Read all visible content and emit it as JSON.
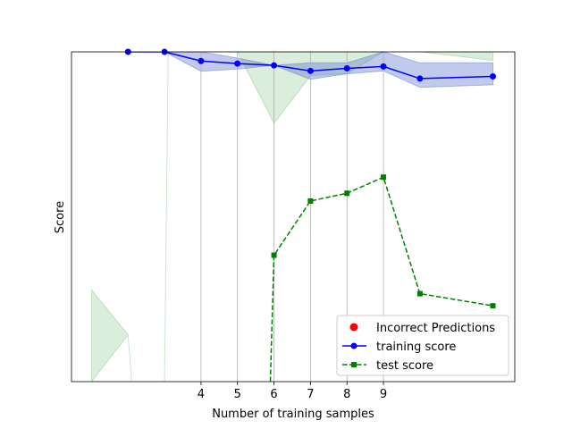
{
  "chart_data": {
    "type": "line",
    "title": "",
    "xlabel": "Number of training samples",
    "ylabel": "Score",
    "xlim": [
      0.45,
      12.6
    ],
    "ylim": [
      0.0,
      0.9
    ],
    "xticks": [
      4,
      5,
      6,
      7,
      8,
      9
    ],
    "yticks": [],
    "grid": "vertical",
    "legend": "lower-right",
    "colors": {
      "training": "#0000ff",
      "test": "#008000",
      "training_band": "#4d68c8",
      "test_band": "#5aab5a",
      "incorrect": "#ff0000"
    },
    "legend_entries": [
      {
        "label": "Incorrect Predictions",
        "marker": "circle",
        "color": "#ff0000"
      },
      {
        "label": "training score",
        "marker": "circle-line",
        "color": "#0000ff"
      },
      {
        "label": "test score",
        "marker": "square-dashed",
        "color": "#008000"
      }
    ],
    "series": [
      {
        "name": "training score",
        "x": [
          2,
          3,
          4,
          5,
          6,
          7,
          8,
          9,
          10,
          12
        ],
        "y": [
          0.9,
          0.9,
          0.875,
          0.868,
          0.863,
          0.848,
          0.855,
          0.86,
          0.827,
          0.833
        ],
        "band_low": [
          0.9,
          0.9,
          0.847,
          0.853,
          0.863,
          0.825,
          0.84,
          0.848,
          0.803,
          0.81
        ],
        "band_high": [
          0.9,
          0.9,
          0.9,
          0.883,
          0.863,
          0.87,
          0.87,
          0.9,
          0.87,
          0.87
        ]
      },
      {
        "name": "test score",
        "x": [
          5.9,
          6,
          7,
          8,
          9,
          10,
          12
        ],
        "y": [
          0.0,
          0.345,
          0.493,
          0.514,
          0.558,
          0.24,
          0.207
        ],
        "band": {
          "x": [
            1,
            2,
            2.1,
            3,
            3.1,
            4,
            5,
            6,
            7,
            8,
            9,
            10,
            12
          ],
          "low": [
            0.0,
            0.128,
            0.0,
            0.0,
            0.9,
            0.9,
            0.9,
            0.705,
            0.835,
            0.84,
            0.9,
            0.9,
            0.877
          ],
          "high": [
            0.25,
            0.128,
            0.0,
            0.0,
            0.9,
            0.9,
            0.9,
            0.9,
            0.9,
            0.9,
            0.9,
            0.9,
            0.9
          ]
        }
      }
    ]
  }
}
